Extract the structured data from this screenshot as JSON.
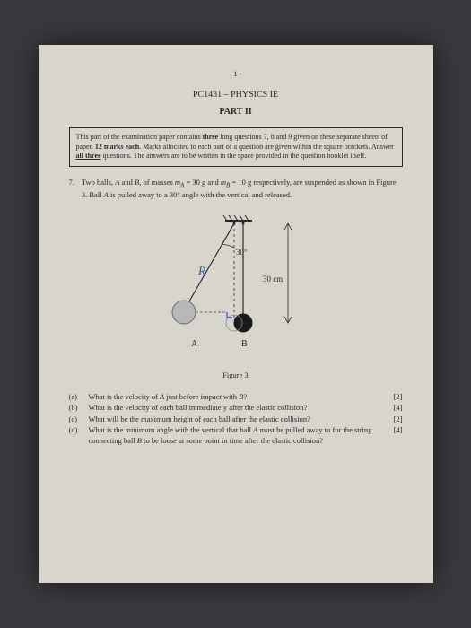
{
  "page_number": "- 1 -",
  "course": "PC1431 – PHYSICS IE",
  "part": "PART II",
  "instructions": "This part of the examination paper contains <b>three</b> long questions 7, 8 and 9 given on these separate sheets of paper. <b>12 marks each</b>. Marks allocated to each part of a question are given within the square brackets. Answer <u><b>all three</b></u> questions. The answers are to be written in the space provided in the question booklet itself.",
  "q_number": "7.",
  "q_text": "Two balls, <i>A</i> and <i>B</i>, of masses <i>m<sub>A</sub></i> = 30 g and <i>m<sub>B</sub></i> = 10 g respectively, are suspended as shown in Figure 3. Ball <i>A</i> is pulled away to a 30° angle with the vertical and released.",
  "figure": {
    "angle_label": "30°",
    "length_label": "30 cm",
    "label_a": "A",
    "label_b": "B",
    "annotation_r": "R",
    "colors": {
      "line": "#2a2a2a",
      "ball_a_fill": "#b8b8b8",
      "ball_a_stroke": "#6a6a6a",
      "ball_b_fill": "#1a1a1a",
      "dashed": "#4a4a4a",
      "annot": "#2850c0"
    }
  },
  "figure_label": "Figure 3",
  "subparts": [
    {
      "label": "(a)",
      "text": "What is the velocity of <i>A</i> just before impact with <i>B</i>?",
      "marks": "[2]"
    },
    {
      "label": "(b)",
      "text": "What is the velocity of each ball immediately after the elastic collision?",
      "marks": "[4]"
    },
    {
      "label": "(c)",
      "text": "What will be the maximum height of each ball after the elastic collision?",
      "marks": "[2]"
    },
    {
      "label": "(d)",
      "text": "What is the minimum angle with the vertical that ball <i>A</i> must be pulled away to for the string connecting ball <i>B</i> to be loose at some point in time after the elastic collision?",
      "marks": "[4]"
    }
  ]
}
